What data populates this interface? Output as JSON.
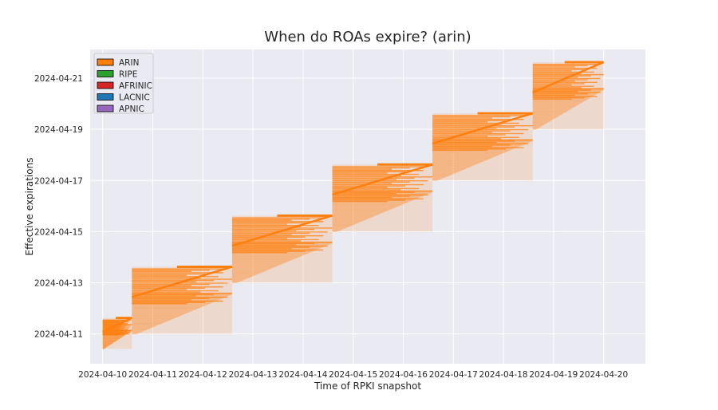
{
  "chart_data": {
    "type": "scatter",
    "title": "When do ROAs expire? (arin)",
    "xlabel": "Time of RPKI snapshot",
    "ylabel": "Effective expirations",
    "x_ticks": [
      "2024-04-10",
      "2024-04-11",
      "2024-04-12",
      "2024-04-13",
      "2024-04-14",
      "2024-04-15",
      "2024-04-16",
      "2024-04-17",
      "2024-04-18",
      "2024-04-19",
      "2024-04-20"
    ],
    "y_ticks": [
      "2024-04-11",
      "2024-04-13",
      "2024-04-15",
      "2024-04-17",
      "2024-04-19",
      "2024-04-21"
    ],
    "xlim": [
      "2024-04-09T18:00",
      "2024-04-20T20:00"
    ],
    "ylim": [
      "2024-04-09T20:00",
      "2024-04-22T03:00"
    ],
    "grid": true,
    "legend_position": "top-left",
    "legend": [
      {
        "name": "ARIN",
        "color": "#ff7f0e"
      },
      {
        "name": "RIPE",
        "color": "#2ca02c"
      },
      {
        "name": "AFRINIC",
        "color": "#d62728"
      },
      {
        "name": "LACNIC",
        "color": "#1f77b4"
      },
      {
        "name": "APNIC",
        "color": "#9467bd"
      }
    ],
    "series": [
      {
        "name": "ARIN",
        "color": "#ff7f0e",
        "segments": [
          {
            "x_start": "2024-04-10T00:00",
            "x_end": "2024-04-10T14:00",
            "y_min": "2024-04-10T10:00",
            "y_max": "2024-04-11T15:00"
          },
          {
            "x_start": "2024-04-10T14:00",
            "x_end": "2024-04-12T14:00",
            "y_min": "2024-04-11T00:00",
            "y_max": "2024-04-13T15:00"
          },
          {
            "x_start": "2024-04-12T14:00",
            "x_end": "2024-04-14T14:00",
            "y_min": "2024-04-13T00:00",
            "y_max": "2024-04-15T15:00"
          },
          {
            "x_start": "2024-04-14T14:00",
            "x_end": "2024-04-16T14:00",
            "y_min": "2024-04-15T00:00",
            "y_max": "2024-04-17T15:00"
          },
          {
            "x_start": "2024-04-16T14:00",
            "x_end": "2024-04-18T14:00",
            "y_min": "2024-04-17T00:00",
            "y_max": "2024-04-19T15:00"
          },
          {
            "x_start": "2024-04-18T14:00",
            "x_end": "2024-04-20T00:00",
            "y_min": "2024-04-19T00:00",
            "y_max": "2024-04-21T15:00"
          }
        ]
      }
    ]
  }
}
